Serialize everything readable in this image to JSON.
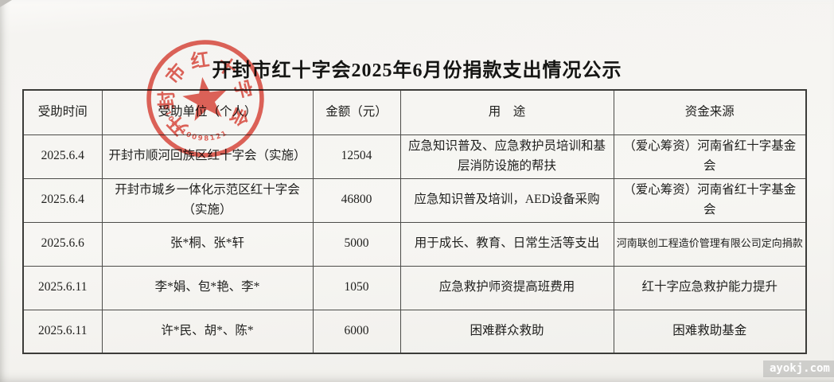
{
  "page": {
    "title": "开封市红十字会2025年6月份捐款支出情况公示",
    "watermark": "ayokj.com"
  },
  "stamp": {
    "arc_text": "开封市红十字会",
    "serial": "4102210098121",
    "color": "#dd4338"
  },
  "table": {
    "headers": [
      "受助时间",
      "受助单位（个人）",
      "金额（元）",
      "用　途",
      "资金来源"
    ],
    "rows": [
      [
        "2025.6.4",
        "开封市顺河回族区红十字会（实施）",
        "12504",
        "应急知识普及、应急救护员培训和基层消防设施的帮扶",
        "（爱心筹资）河南省红十字基金会"
      ],
      [
        "2025.6.4",
        "开封市城乡一体化示范区红十字会（实施）",
        "46800",
        "应急知识普及培训，AED设备采购",
        "（爱心筹资）河南省红十字基金会"
      ],
      [
        "2025.6.6",
        "张*桐、张*轩",
        "5000",
        "用于成长、教育、日常生活等支出",
        "河南联创工程造价管理有限公司定向捐款"
      ],
      [
        "2025.6.11",
        "李*娟、包*艳、李*",
        "1050",
        "应急救护师资提高班费用",
        "红十字应急救护能力提升"
      ],
      [
        "2025.6.11",
        "许*民、胡*、陈*",
        "6000",
        "困难群众救助",
        "困难救助基金"
      ]
    ]
  }
}
